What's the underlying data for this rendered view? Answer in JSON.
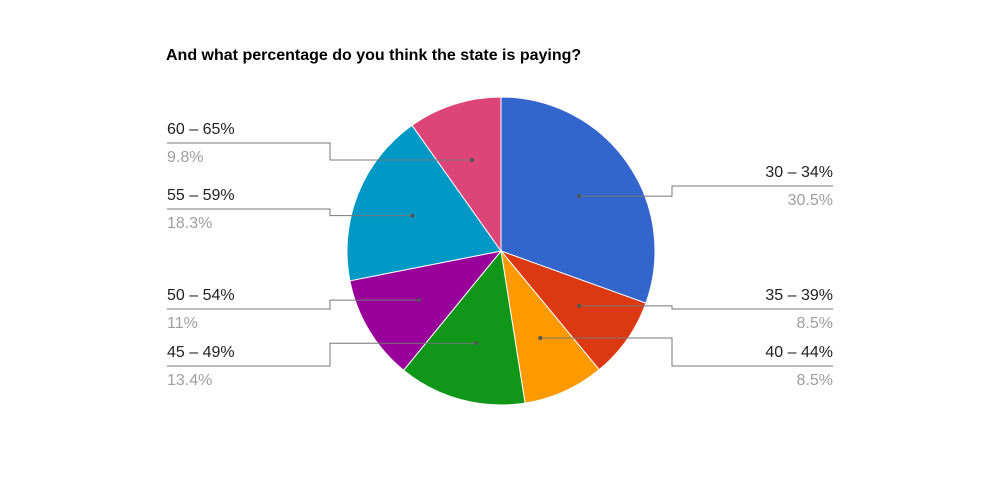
{
  "chart_data": {
    "type": "pie",
    "title": "And what percentage do you think the state is paying?",
    "slices": [
      {
        "label": "30 – 34%",
        "value": 30.5,
        "display": "30.5%",
        "color": "#3366cc"
      },
      {
        "label": "35 – 39%",
        "value": 8.5,
        "display": "8.5%",
        "color": "#dc3912"
      },
      {
        "label": "40 – 44%",
        "value": 8.5,
        "display": "8.5%",
        "color": "#ff9900"
      },
      {
        "label": "45 – 49%",
        "value": 13.4,
        "display": "13.4%",
        "color": "#109618"
      },
      {
        "label": "50 – 54%",
        "value": 11,
        "display": "11%",
        "color": "#990099"
      },
      {
        "label": "55 – 59%",
        "value": 18.3,
        "display": "18.3%",
        "color": "#0099c6"
      },
      {
        "label": "60 – 65%",
        "value": 9.8,
        "display": "9.8%",
        "color": "#dd4477"
      }
    ]
  }
}
